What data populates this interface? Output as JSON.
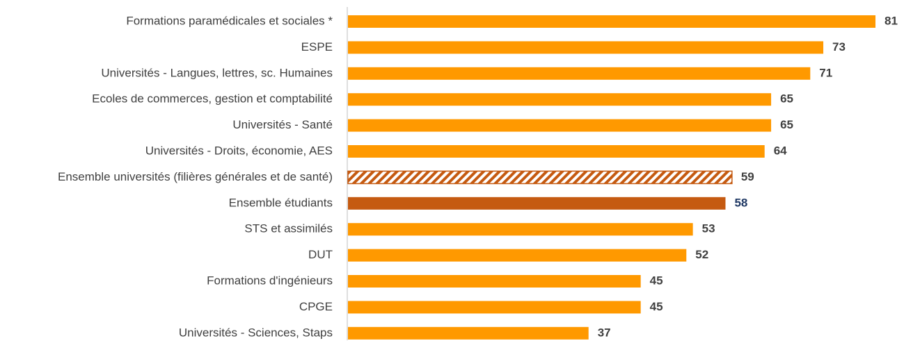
{
  "chart_data": {
    "type": "hbar",
    "categories": [
      "Formations paramédicales et sociales *",
      "ESPE",
      "Universités - Langues, lettres, sc. Humaines",
      "Ecoles de commerces, gestion et comptabilité",
      "Universités - Santé",
      "Universités - Droits, économie, AES",
      "Ensemble universités (filières générales et de santé)",
      "Ensemble étudiants",
      "STS et assimilés",
      "DUT",
      "Formations d'ingénieurs",
      "CPGE",
      "Universités - Sciences, Staps"
    ],
    "values": [
      81,
      73,
      71,
      65,
      65,
      64,
      59,
      58,
      53,
      52,
      45,
      45,
      37
    ],
    "colors": [
      "#ff9900",
      "#ff9900",
      "#ff9900",
      "#ff9900",
      "#ff9900",
      "#ff9900",
      "#c55a11",
      "#c55a11",
      "#ff9900",
      "#ff9900",
      "#ff9900",
      "#ff9900",
      "#ff9900"
    ],
    "styles": [
      "solid",
      "solid",
      "solid",
      "solid",
      "solid",
      "solid",
      "hatched",
      "solid",
      "solid",
      "solid",
      "solid",
      "solid",
      "solid"
    ],
    "label_colors": [
      "#404040",
      "#404040",
      "#404040",
      "#404040",
      "#404040",
      "#404040",
      "#404040",
      "#1f3864",
      "#404040",
      "#404040",
      "#404040",
      "#404040",
      "#404040"
    ]
  }
}
